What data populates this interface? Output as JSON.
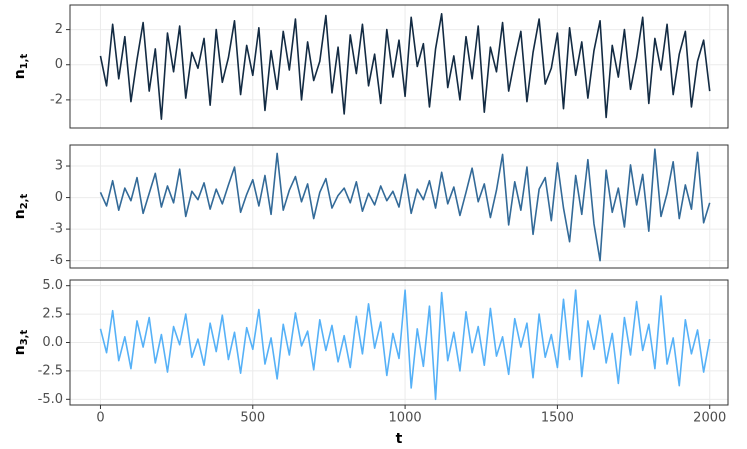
{
  "chart_data": [
    {
      "type": "line",
      "ylabel": "n",
      "ylabel_sub": "1,t",
      "x": [
        0,
        20,
        40,
        60,
        80,
        100,
        120,
        140,
        160,
        180,
        200,
        220,
        240,
        260,
        280,
        300,
        320,
        340,
        360,
        380,
        400,
        420,
        440,
        460,
        480,
        500,
        520,
        540,
        560,
        580,
        600,
        620,
        640,
        660,
        680,
        700,
        720,
        740,
        760,
        780,
        800,
        820,
        840,
        860,
        880,
        900,
        920,
        940,
        960,
        980,
        1000,
        1020,
        1040,
        1060,
        1080,
        1100,
        1120,
        1140,
        1160,
        1180,
        1200,
        1220,
        1240,
        1260,
        1280,
        1300,
        1320,
        1340,
        1360,
        1380,
        1400,
        1420,
        1440,
        1460,
        1480,
        1500,
        1520,
        1540,
        1560,
        1580,
        1600,
        1620,
        1640,
        1660,
        1680,
        1700,
        1720,
        1740,
        1760,
        1780,
        1800,
        1820,
        1840,
        1860,
        1880,
        1900,
        1920,
        1940,
        1960,
        1980,
        2000
      ],
      "series": [
        {
          "color": "#132b43",
          "values": [
            0.5,
            -1.2,
            2.3,
            -0.8,
            1.6,
            -2.1,
            0.3,
            2.4,
            -1.5,
            0.9,
            -3.1,
            1.8,
            -0.4,
            2.2,
            -1.9,
            0.7,
            -0.2,
            1.5,
            -2.3,
            2.0,
            -1.0,
            0.4,
            2.5,
            -1.7,
            1.1,
            -0.6,
            2.1,
            -2.6,
            0.8,
            -1.4,
            1.9,
            -0.3,
            2.6,
            -2.0,
            1.3,
            -0.9,
            0.2,
            2.8,
            -1.6,
            1.0,
            -2.8,
            1.7,
            -0.5,
            2.3,
            -1.2,
            0.6,
            -2.2,
            2.0,
            -0.7,
            1.4,
            -1.8,
            2.7,
            -0.1,
            1.2,
            -2.4,
            0.9,
            2.9,
            -1.3,
            0.5,
            -2.0,
            1.6,
            -0.8,
            2.2,
            -2.7,
            1.0,
            -0.4,
            2.4,
            -1.5,
            0.3,
            1.9,
            -2.1,
            0.7,
            2.6,
            -1.1,
            -0.2,
            1.8,
            -2.5,
            2.1,
            -0.6,
            1.3,
            -1.9,
            0.8,
            2.5,
            -3.0,
            1.1,
            -0.7,
            2.0,
            -1.4,
            0.4,
            2.7,
            -2.2,
            1.5,
            -0.3,
            2.3,
            -1.7,
            0.6,
            1.9,
            -2.4,
            0.2,
            1.4,
            -1.5
          ]
        }
      ],
      "xlim": [
        -100,
        2060
      ],
      "ylim": [
        -3.6,
        3.4
      ],
      "yticks": [
        -2,
        0,
        2
      ],
      "grid": true
    },
    {
      "type": "line",
      "ylabel": "n",
      "ylabel_sub": "2,t",
      "x": [
        0,
        20,
        40,
        60,
        80,
        100,
        120,
        140,
        160,
        180,
        200,
        220,
        240,
        260,
        280,
        300,
        320,
        340,
        360,
        380,
        400,
        420,
        440,
        460,
        480,
        500,
        520,
        540,
        560,
        580,
        600,
        620,
        640,
        660,
        680,
        700,
        720,
        740,
        760,
        780,
        800,
        820,
        840,
        860,
        880,
        900,
        920,
        940,
        960,
        980,
        1000,
        1020,
        1040,
        1060,
        1080,
        1100,
        1120,
        1140,
        1160,
        1180,
        1200,
        1220,
        1240,
        1260,
        1280,
        1300,
        1320,
        1340,
        1360,
        1380,
        1400,
        1420,
        1440,
        1460,
        1480,
        1500,
        1520,
        1540,
        1560,
        1580,
        1600,
        1620,
        1640,
        1660,
        1680,
        1700,
        1720,
        1740,
        1760,
        1780,
        1800,
        1820,
        1840,
        1860,
        1880,
        1900,
        1920,
        1940,
        1960,
        1980,
        2000
      ],
      "series": [
        {
          "color": "#336a98",
          "values": [
            0.5,
            -0.8,
            1.6,
            -1.2,
            0.9,
            -0.3,
            1.9,
            -1.5,
            0.4,
            2.3,
            -0.9,
            1.1,
            -0.5,
            2.7,
            -1.8,
            0.6,
            -0.2,
            1.4,
            -1.1,
            0.8,
            -0.6,
            1.2,
            2.9,
            -1.4,
            0.3,
            1.7,
            -0.8,
            2.1,
            -1.6,
            4.2,
            -1.2,
            0.7,
            2.0,
            -0.4,
            1.3,
            -2.0,
            0.5,
            1.8,
            -1.0,
            0.2,
            0.9,
            -0.5,
            1.5,
            -1.3,
            0.4,
            -0.7,
            1.1,
            -0.3,
            0.6,
            -0.9,
            2.2,
            -1.5,
            0.8,
            -0.2,
            1.6,
            -1.0,
            2.4,
            -0.6,
            1.0,
            -1.7,
            0.5,
            2.8,
            -0.4,
            1.3,
            -1.9,
            0.7,
            4.1,
            -2.6,
            1.5,
            -1.2,
            2.9,
            -3.5,
            0.8,
            1.9,
            -2.2,
            3.3,
            -1.0,
            -4.2,
            2.1,
            -1.6,
            3.6,
            -2.5,
            -6.0,
            2.6,
            -1.4,
            0.9,
            -2.8,
            3.1,
            -0.7,
            2.2,
            -3.2,
            4.6,
            -1.8,
            0.4,
            3.4,
            -2.0,
            1.2,
            -1.1,
            4.3,
            -2.4,
            -0.5
          ]
        }
      ],
      "xlim": [
        -100,
        2060
      ],
      "ylim": [
        -6.7,
        5.0
      ],
      "yticks": [
        -6,
        -3,
        0,
        3
      ],
      "grid": true
    },
    {
      "type": "line",
      "ylabel": "n",
      "ylabel_sub": "3,t",
      "xlabel": "t",
      "x": [
        0,
        20,
        40,
        60,
        80,
        100,
        120,
        140,
        160,
        180,
        200,
        220,
        240,
        260,
        280,
        300,
        320,
        340,
        360,
        380,
        400,
        420,
        440,
        460,
        480,
        500,
        520,
        540,
        560,
        580,
        600,
        620,
        640,
        660,
        680,
        700,
        720,
        740,
        760,
        780,
        800,
        820,
        840,
        860,
        880,
        900,
        920,
        940,
        960,
        980,
        1000,
        1020,
        1040,
        1060,
        1080,
        1100,
        1120,
        1140,
        1160,
        1180,
        1200,
        1220,
        1240,
        1260,
        1280,
        1300,
        1320,
        1340,
        1360,
        1380,
        1400,
        1420,
        1440,
        1460,
        1480,
        1500,
        1520,
        1540,
        1560,
        1580,
        1600,
        1620,
        1640,
        1660,
        1680,
        1700,
        1720,
        1740,
        1760,
        1780,
        1800,
        1820,
        1840,
        1860,
        1880,
        1900,
        1920,
        1940,
        1960,
        1980,
        2000
      ],
      "series": [
        {
          "color": "#56b1f7",
          "values": [
            1.2,
            -0.9,
            2.8,
            -1.6,
            0.5,
            -2.3,
            1.9,
            -0.4,
            2.2,
            -1.8,
            0.7,
            -2.6,
            1.4,
            -0.2,
            2.5,
            -1.3,
            0.3,
            -2.0,
            1.7,
            -0.8,
            2.4,
            -1.5,
            0.9,
            -2.7,
            1.3,
            -0.6,
            2.9,
            -1.9,
            0.4,
            -3.2,
            1.6,
            -1.1,
            2.6,
            -0.3,
            1.0,
            -2.4,
            2.0,
            -0.7,
            1.5,
            -1.7,
            0.6,
            -2.2,
            2.3,
            -1.0,
            3.4,
            -0.5,
            1.8,
            -2.9,
            0.8,
            -1.4,
            4.6,
            -4.0,
            1.2,
            -2.1,
            3.2,
            -5.0,
            4.4,
            -1.6,
            0.9,
            -2.5,
            2.7,
            -0.9,
            1.4,
            -2.0,
            3.0,
            -1.2,
            0.5,
            -2.8,
            2.1,
            -0.4,
            1.7,
            -3.1,
            2.5,
            -1.3,
            0.7,
            -2.2,
            3.8,
            -1.5,
            4.6,
            -3.0,
            1.9,
            -0.6,
            2.4,
            -1.8,
            0.8,
            -3.6,
            2.2,
            -1.1,
            3.6,
            -0.7,
            1.6,
            -2.3,
            4.1,
            -1.9,
            0.4,
            -3.8,
            2.0,
            -1.0,
            1.1,
            -2.6,
            0.3
          ]
        }
      ],
      "xlim": [
        -100,
        2060
      ],
      "ylim": [
        -5.5,
        5.5
      ],
      "yticks": [
        {
          "value": -5,
          "label": "-5.0"
        },
        {
          "value": -2.5,
          "label": "-2.5"
        },
        {
          "value": 0,
          "label": "0.0"
        },
        {
          "value": 2.5,
          "label": "2.5"
        },
        {
          "value": 5,
          "label": "5.0"
        }
      ],
      "xticks": [
        0,
        500,
        1000,
        1500,
        2000
      ],
      "grid": true
    }
  ]
}
